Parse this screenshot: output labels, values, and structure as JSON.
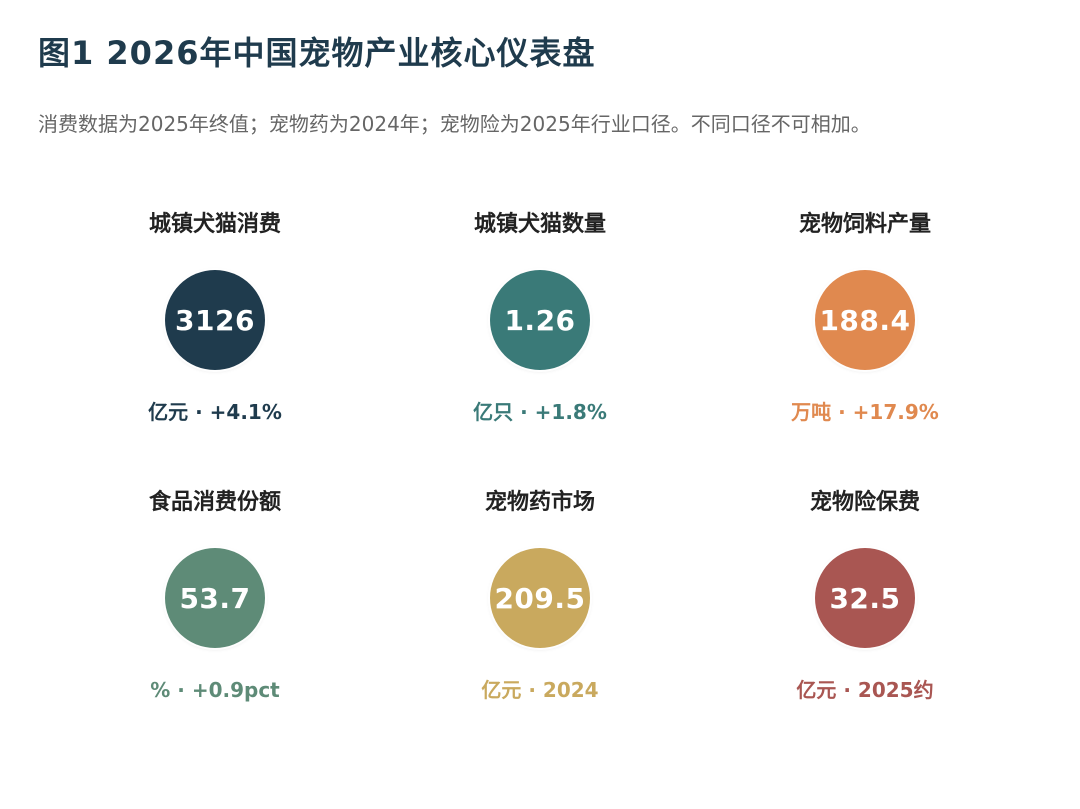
{
  "chart_data": {
    "type": "table",
    "title": "图1  2026年中国宠物产业核心仪表盘",
    "subtitle": "消费数据为2025年终值；宠物药为2024年；宠物险为2025年行业口径。不同口径不可相加。",
    "items": [
      {
        "label": "城镇犬猫消费",
        "value": 3126,
        "value_text": "3126",
        "note": "亿元 · +4.1%",
        "color": "#1f3b4d"
      },
      {
        "label": "城镇犬猫数量",
        "value": 1.26,
        "value_text": "1.26",
        "note": "亿只 · +1.8%",
        "color": "#3a7a78"
      },
      {
        "label": "宠物饲料产量",
        "value": 188.4,
        "value_text": "188.4",
        "note": "万吨 · +17.9%",
        "color": "#e0894f"
      },
      {
        "label": "食品消费份额",
        "value": 53.7,
        "value_text": "53.7",
        "note": "% · +0.9pct",
        "color": "#5e8b77"
      },
      {
        "label": "宠物药市场",
        "value": 209.5,
        "value_text": "209.5",
        "note": "亿元 · 2024",
        "color": "#c9a95e"
      },
      {
        "label": "宠物险保费",
        "value": 32.5,
        "value_text": "32.5",
        "note": "亿元 · 2025约",
        "color": "#a95652"
      }
    ]
  }
}
